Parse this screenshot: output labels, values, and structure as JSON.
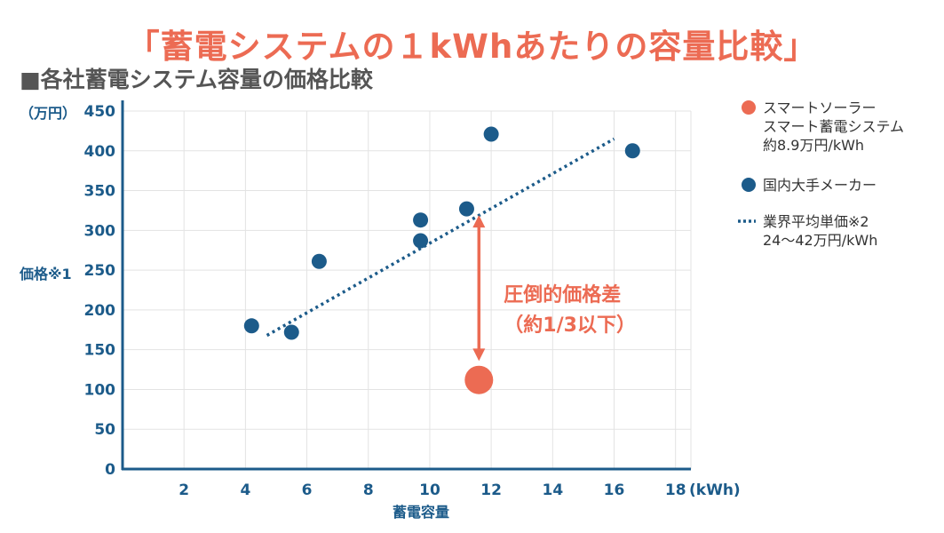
{
  "page": {
    "title": "「蓄電システムの１kWhあたりの容量比較」",
    "subtitle": "■各社蓄電システム容量の価格比較"
  },
  "colors": {
    "accent": "#ec6b53",
    "navy": "#1c5b8a",
    "grid": "#e3e3e3"
  },
  "chart_data": {
    "type": "scatter",
    "title": "「蓄電システムの１kWhあたりの容量比較」",
    "subtitle": "■各社蓄電システム容量の価格比較",
    "xlabel": "蓄電容量",
    "x_unit": "(kWh)",
    "ylabel": "価格※1",
    "y_unit": "（万円）",
    "xlim": [
      0,
      18.5
    ],
    "ylim": [
      0,
      450
    ],
    "xticks": [
      2,
      4,
      6,
      8,
      10,
      12,
      14,
      16,
      18
    ],
    "yticks": [
      0,
      50,
      100,
      150,
      200,
      250,
      300,
      350,
      400,
      450
    ],
    "grid": true,
    "series": [
      {
        "name": "スマートソーラー スマート蓄電システム 約8.9万円/kWh",
        "legend_lines": [
          "スマートソーラー",
          "スマート蓄電システム",
          "約8.9万円/kWh"
        ],
        "color": "#ec6b53",
        "points": [
          {
            "x": 11.6,
            "y": 112
          }
        ]
      },
      {
        "name": "国内大手メーカー",
        "legend_lines": [
          "国内大手メーカー"
        ],
        "color": "#1c5b8a",
        "points": [
          {
            "x": 4.2,
            "y": 180
          },
          {
            "x": 5.5,
            "y": 172
          },
          {
            "x": 6.4,
            "y": 261
          },
          {
            "x": 9.7,
            "y": 313
          },
          {
            "x": 9.7,
            "y": 287
          },
          {
            "x": 11.2,
            "y": 327
          },
          {
            "x": 12.0,
            "y": 421
          },
          {
            "x": 16.6,
            "y": 400
          }
        ]
      }
    ],
    "trendline": {
      "name": "業界平均単価※2 24〜42万円/kWh",
      "legend_lines": [
        "業界平均単価※2",
        "24〜42万円/kWh"
      ],
      "color": "#1c5b8a",
      "from": {
        "x": 4.7,
        "y": 168
      },
      "to": {
        "x": 16.0,
        "y": 415
      }
    },
    "annotation": {
      "lines": [
        "圧倒的価格差",
        "（約1/3以下）"
      ],
      "from": {
        "x": 11.6,
        "y": 317
      },
      "to": {
        "x": 11.6,
        "y": 138
      }
    }
  }
}
